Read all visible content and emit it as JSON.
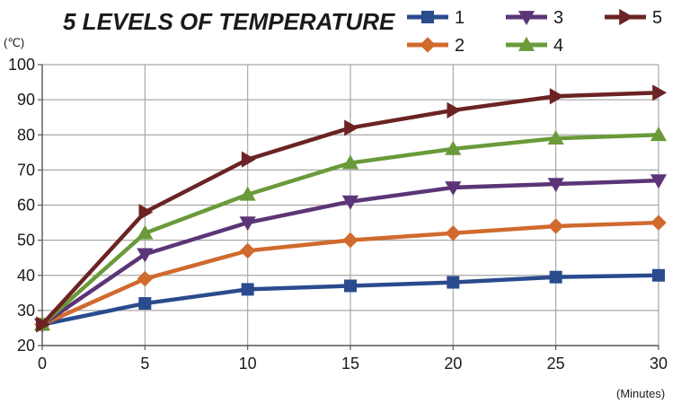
{
  "chart_data": {
    "type": "line",
    "title": "5 LEVELS OF TEMPERATURE",
    "ylabel": "(℃)",
    "xlabel": "(Minutes)",
    "x": [
      0,
      5,
      10,
      15,
      20,
      25,
      30
    ],
    "xlim": [
      0,
      30
    ],
    "ylim": [
      20,
      100
    ],
    "xticks": [
      "0",
      "5",
      "10",
      "15",
      "20",
      "25",
      "30"
    ],
    "yticks": [
      "20",
      "30",
      "40",
      "50",
      "60",
      "70",
      "80",
      "90",
      "100"
    ],
    "grid": true,
    "legend_position": "top-right",
    "series": [
      {
        "name": "1",
        "color": "#2a4b8d",
        "marker": "square",
        "values": [
          26,
          32,
          36,
          37,
          38,
          39.5,
          40
        ]
      },
      {
        "name": "2",
        "color": "#d06a2e",
        "marker": "diamond",
        "values": [
          26,
          39,
          47,
          50,
          52,
          54,
          55
        ]
      },
      {
        "name": "3",
        "color": "#5b3577",
        "marker": "triangle-down",
        "values": [
          26,
          46,
          55,
          61,
          65,
          66,
          67
        ]
      },
      {
        "name": "4",
        "color": "#6a9a3a",
        "marker": "triangle-up",
        "values": [
          26,
          52,
          63,
          72,
          76,
          79,
          80
        ]
      },
      {
        "name": "5",
        "color": "#6b2323",
        "marker": "triangle-right",
        "values": [
          26,
          58,
          73,
          82,
          87,
          91,
          92
        ]
      }
    ]
  }
}
